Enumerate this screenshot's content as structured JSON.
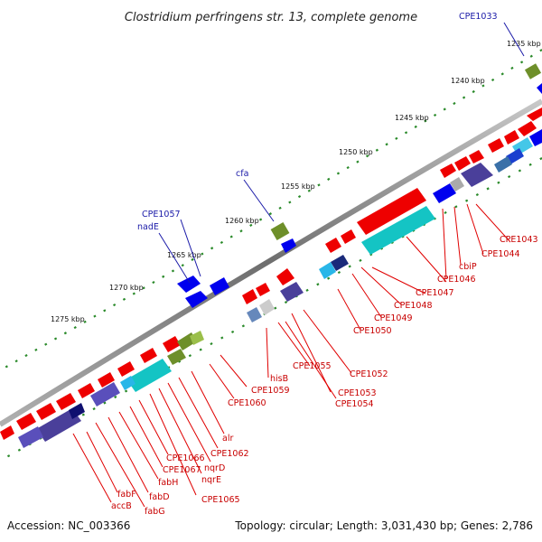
{
  "title": "Clostridium perfringens str. 13, complete genome",
  "accession": "Accession: NC_003366",
  "topology": "Topology: circular; Length: 3,031,430 bp; Genes: 2,786",
  "colors": {
    "backbone": "#808080",
    "forward_cds": "#ee0000",
    "reverse_cds": "#0000ee",
    "tick": "#2a8a2a",
    "label_red": "#c80000",
    "label_blue": "#1a1aa8"
  },
  "kbp_marks": [
    "1235 kbp",
    "1240 kbp",
    "1245 kbp",
    "1250 kbp",
    "1255 kbp",
    "1260 kbp",
    "1265 kbp",
    "1270 kbp",
    "1275 kbp"
  ],
  "outer_labels": [
    "CPE1033",
    "cfa",
    "CPE1057",
    "nadE"
  ],
  "inner_labels": [
    "CPE1043",
    "CPE1044",
    "cbiP",
    "CPE1046",
    "CPE1047",
    "CPE1048",
    "CPE1049",
    "CPE1050",
    "CPE1052",
    "CPE1053",
    "CPE1054",
    "CPE1055",
    "hisB",
    "CPE1059",
    "CPE1060",
    "alr",
    "CPE1062",
    "nqrD",
    "nqrE",
    "CPE1065",
    "CPE1066",
    "CPE1067",
    "fabH",
    "fabD",
    "fabG",
    "fabF",
    "accB"
  ]
}
